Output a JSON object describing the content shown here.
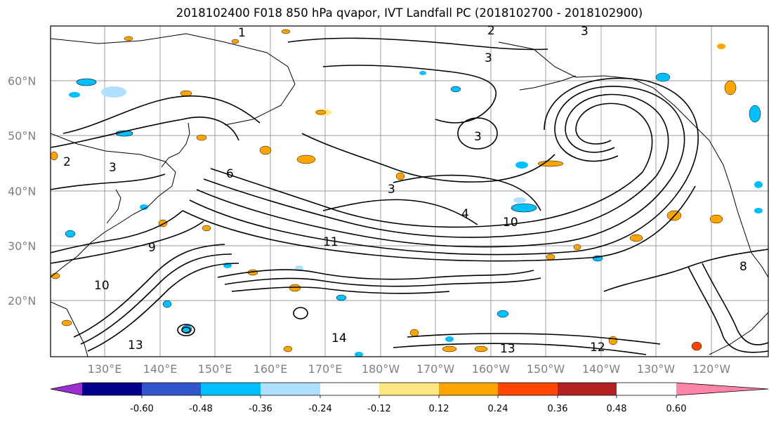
{
  "title": "2018102400 F018 850 hPa qvapor, IVT Landfall PC (2018102700 - 2018102900)",
  "map": {
    "lat_labels": [
      "60°N",
      "50°N",
      "40°N",
      "30°N",
      "20°N"
    ],
    "lon_labels": [
      "130°E",
      "140°E",
      "150°E",
      "160°E",
      "170°E",
      "180°W",
      "170°W",
      "160°W",
      "150°W",
      "140°W",
      "130°W",
      "120°W"
    ],
    "contour_labels": [
      "1",
      "2",
      "3",
      "3",
      "3",
      "3",
      "4",
      "6",
      "9",
      "10",
      "10",
      "11",
      "13",
      "13",
      "14",
      "12",
      "2",
      "3",
      "8"
    ],
    "grid": true,
    "coastline_color": "#000000",
    "contour_color": "#000000"
  },
  "colorbar": {
    "colors": [
      "#9b30d0",
      "#00008b",
      "#3355cc",
      "#00bfff",
      "#b0e0ff",
      "#ffffff",
      "#ffe680",
      "#ffa500",
      "#ff4500",
      "#b22222",
      "#ff85a8"
    ],
    "tick_labels": [
      "-0.60",
      "-0.48",
      "-0.36",
      "-0.24",
      "-0.12",
      "0.12",
      "0.24",
      "0.36",
      "0.48",
      "0.60"
    ],
    "extend": "both"
  }
}
